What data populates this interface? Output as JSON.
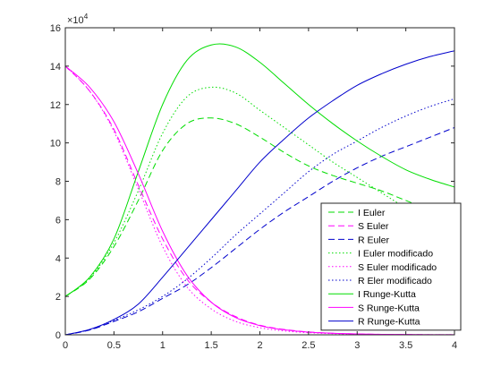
{
  "chart_data": {
    "type": "line",
    "title": "",
    "xlabel": "",
    "ylabel": "",
    "xlim": [
      0,
      4
    ],
    "ylim": [
      0,
      160000
    ],
    "x_ticks": [
      0,
      0.5,
      1,
      1.5,
      2,
      2.5,
      3,
      3.5,
      4
    ],
    "x_tick_labels": [
      "0",
      "0.5",
      "1",
      "1.5",
      "2",
      "2.5",
      "3",
      "3.5",
      "4"
    ],
    "y_ticks": [
      0,
      20000,
      40000,
      60000,
      80000,
      100000,
      120000,
      140000,
      160000
    ],
    "y_tick_labels": [
      "0",
      "2",
      "4",
      "6",
      "8",
      "10",
      "12",
      "14",
      "16"
    ],
    "y_exponent": {
      "base": "×10",
      "power": "4"
    },
    "grid": false,
    "legend_position": "bottom-right",
    "x": [
      0,
      0.25,
      0.5,
      0.75,
      1.0,
      1.25,
      1.5,
      1.75,
      2.0,
      2.25,
      2.5,
      2.75,
      3.0,
      3.25,
      3.5,
      3.75,
      4.0
    ],
    "series": [
      {
        "name": "I Euler",
        "color": "#00dd00",
        "dash": "dashed",
        "values": [
          20000,
          29000,
          46000,
          70000,
          96000,
          110000,
          113000,
          110000,
          103000,
          95000,
          88000,
          83000,
          79000,
          75000,
          70000,
          65000,
          60000
        ]
      },
      {
        "name": "S Euler",
        "color": "#ff00ff",
        "dash": "dashed",
        "values": [
          140000,
          127000,
          107000,
          78000,
          50000,
          29000,
          17000,
          9500,
          5000,
          2800,
          1500,
          800,
          450,
          250,
          150,
          80,
          40
        ]
      },
      {
        "name": "R Euler",
        "color": "#0000cc",
        "dash": "dashed",
        "values": [
          0,
          2500,
          7000,
          12000,
          19000,
          26000,
          35000,
          45000,
          55000,
          64000,
          72000,
          80000,
          87000,
          93000,
          98000,
          103000,
          108000
        ]
      },
      {
        "name": "I Euler modificado",
        "color": "#00dd00",
        "dash": "dotted",
        "values": [
          20000,
          29500,
          48000,
          75000,
          105000,
          124000,
          129000,
          126000,
          117000,
          108000,
          99000,
          90000,
          82000,
          74000,
          66000,
          58000,
          51000
        ]
      },
      {
        "name": "S Euler modificado",
        "color": "#ff00ff",
        "dash": "dotted",
        "values": [
          140000,
          127000,
          106000,
          76000,
          46000,
          25000,
          13500,
          7000,
          3700,
          2000,
          1100,
          600,
          330,
          180,
          100,
          60,
          30
        ]
      },
      {
        "name": "R Eler modificado",
        "color": "#0000cc",
        "dash": "dotted",
        "values": [
          0,
          2700,
          7500,
          13000,
          20000,
          29000,
          40000,
          52000,
          63000,
          74000,
          85000,
          94000,
          101000,
          108000,
          114000,
          119000,
          123000
        ]
      },
      {
        "name": "I Runge-Kutta",
        "color": "#00dd00",
        "dash": "solid",
        "values": [
          20000,
          30000,
          50000,
          85000,
          120000,
          143000,
          151000,
          150000,
          142000,
          131000,
          120000,
          110000,
          101000,
          93000,
          86000,
          81000,
          77000
        ]
      },
      {
        "name": "S Runge-Kutta",
        "color": "#ff00ff",
        "dash": "solid",
        "values": [
          140000,
          129000,
          111000,
          84000,
          54000,
          31000,
          17000,
          9000,
          4800,
          2600,
          1400,
          800,
          450,
          250,
          150,
          80,
          40
        ]
      },
      {
        "name": "R Runge-Kutta",
        "color": "#0000cc",
        "dash": "solid",
        "values": [
          0,
          2800,
          8000,
          16000,
          30000,
          45000,
          60000,
          75000,
          90000,
          102000,
          113000,
          122000,
          130000,
          136000,
          141000,
          145000,
          148000
        ]
      }
    ]
  }
}
